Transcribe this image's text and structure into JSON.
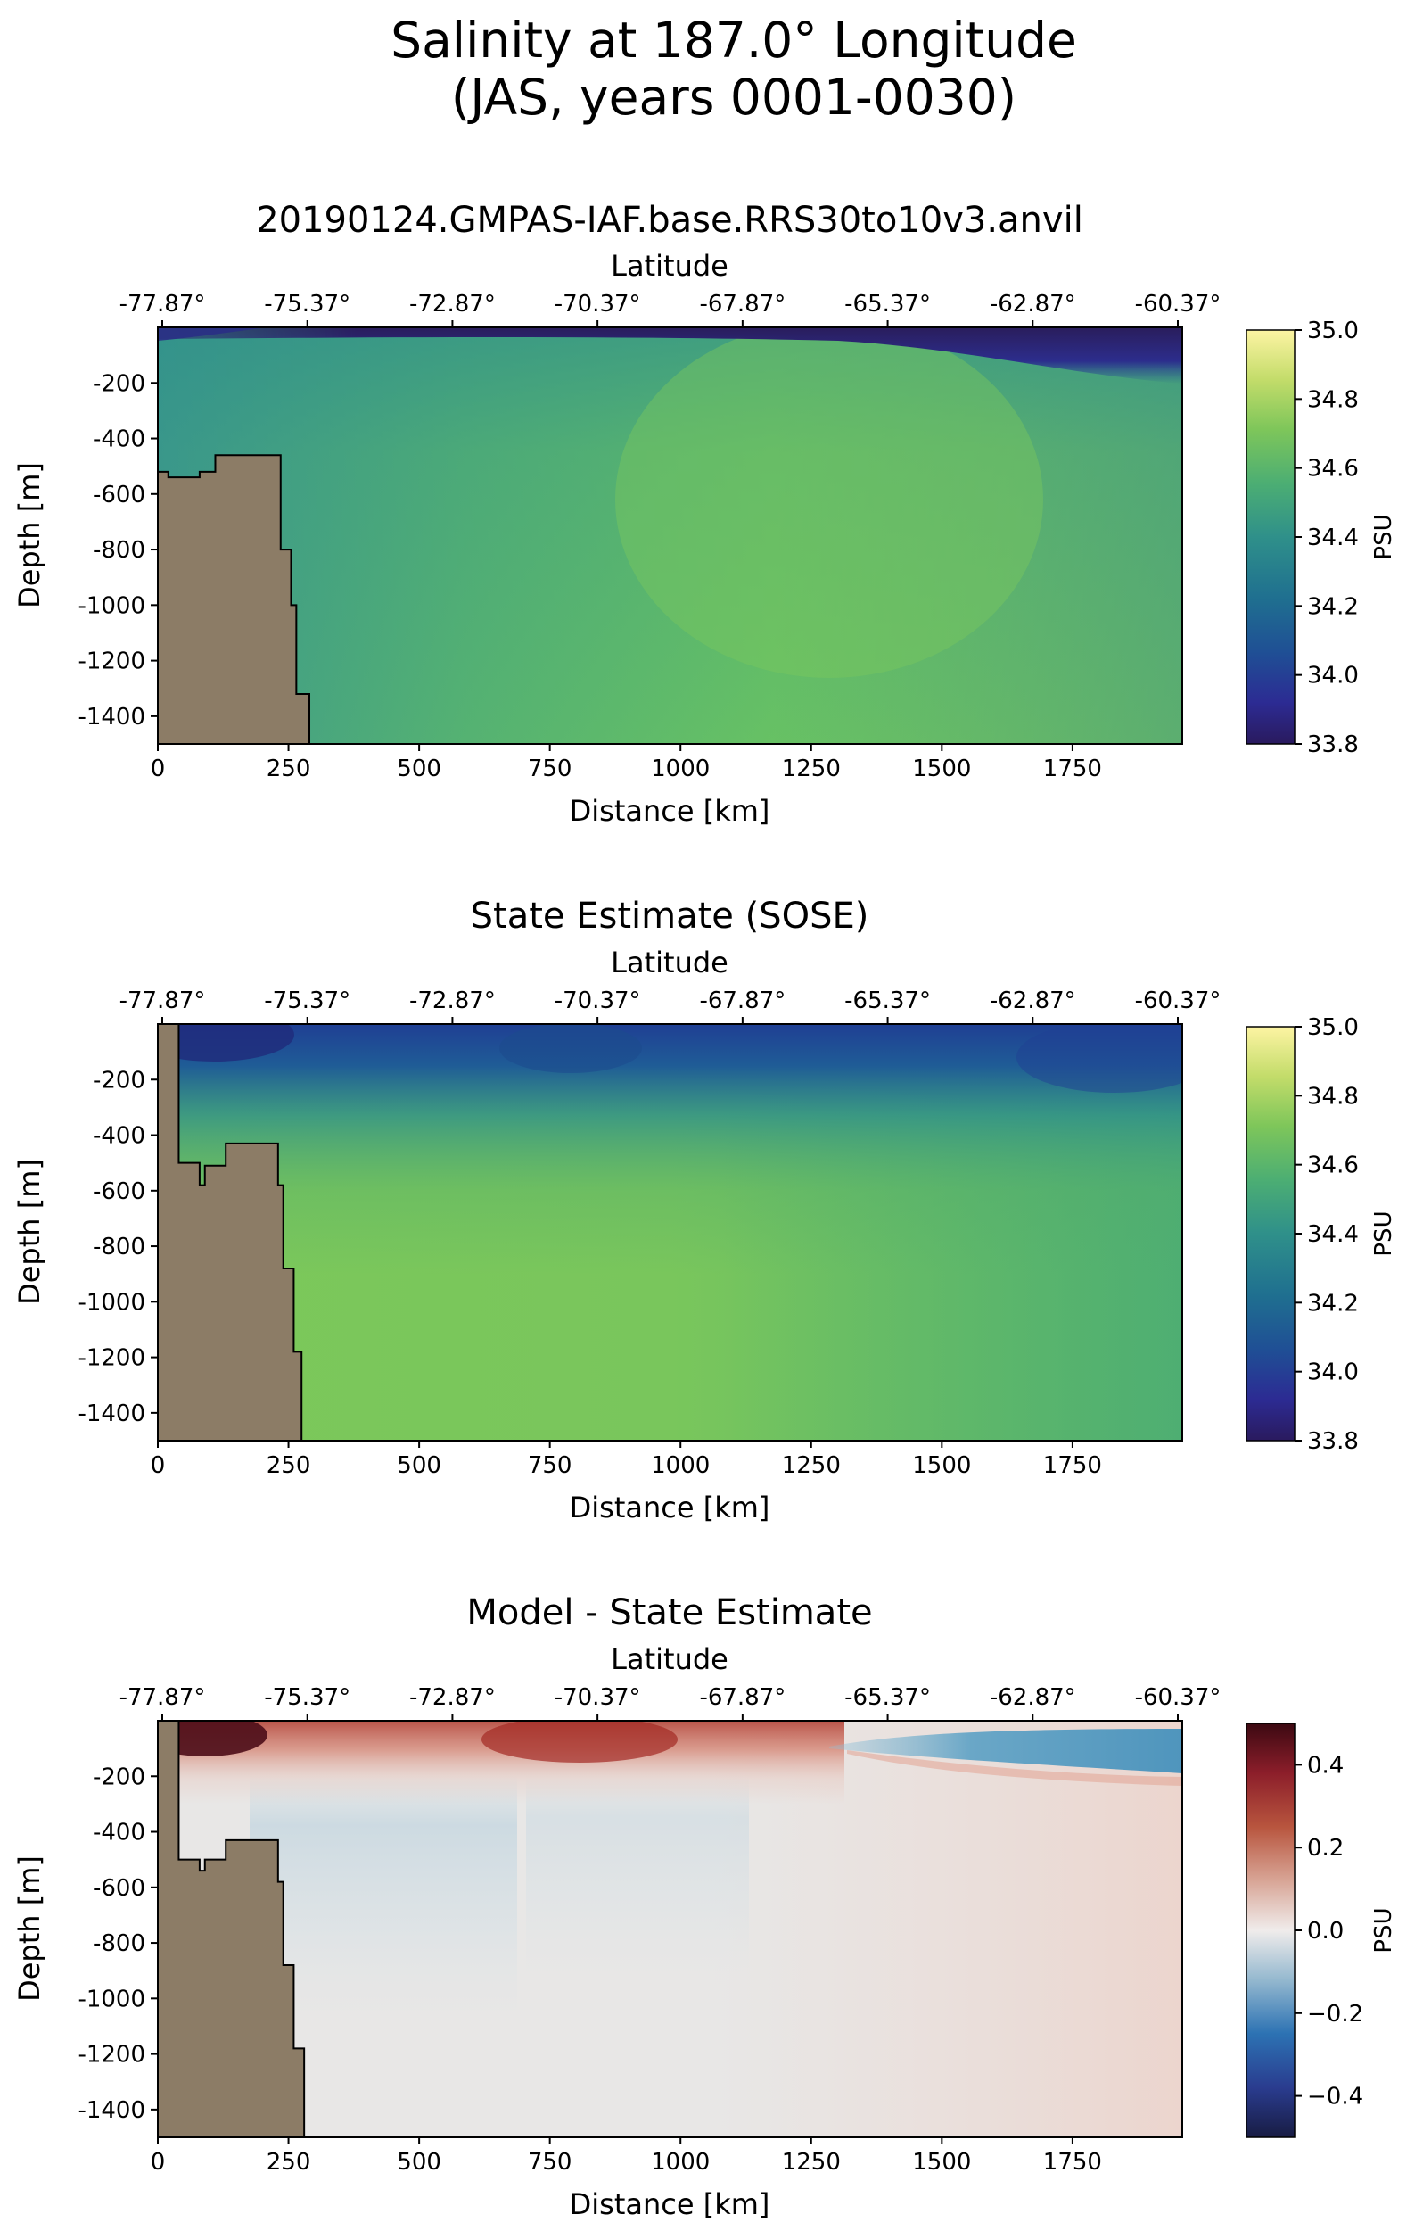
{
  "figure": {
    "title_line1": "Salinity at 187.0° Longitude",
    "title_line2": "(JAS, years 0001-0030)"
  },
  "chart_data": [
    {
      "type": "heatmap",
      "title": "20190124.GMPAS-IAF.base.RRS30to10v3.anvil",
      "xlabel": "Distance [km]",
      "ylabel": "Depth [m]",
      "top_xlabel": "Latitude",
      "xlim": [
        0,
        1960
      ],
      "ylim": [
        -1500,
        0
      ],
      "xticks": [
        "0",
        "250",
        "500",
        "750",
        "1000",
        "1250",
        "1500",
        "1750"
      ],
      "yticks": [
        "-200",
        "-400",
        "-600",
        "-800",
        "-1000",
        "-1200",
        "-1400"
      ],
      "top_xticks": [
        "-77.87°",
        "-75.37°",
        "-72.87°",
        "-70.37°",
        "-67.87°",
        "-65.37°",
        "-62.87°",
        "-60.37°"
      ],
      "colorbar": {
        "label": "PSU",
        "range": [
          33.8,
          35.0
        ],
        "ticks": [
          "35.0",
          "34.8",
          "34.6",
          "34.4",
          "34.2",
          "34.0",
          "33.8"
        ],
        "colormap": "haline"
      },
      "land": {
        "color": "#8c7c66",
        "outline": [
          [
            0,
            -520
          ],
          [
            20,
            -540
          ],
          [
            80,
            -520
          ],
          [
            110,
            -460
          ],
          [
            220,
            -460
          ],
          [
            235,
            -800
          ],
          [
            255,
            -1000
          ],
          [
            265,
            -1320
          ],
          [
            290,
            -1500
          ]
        ]
      },
      "field_description": {
        "surface_fresh_zone": "Distance 1300-1960 km, depth 0 to -200 m, ~33.8-34.0 PSU",
        "interior": "~34.5-34.7 PSU"
      }
    },
    {
      "type": "heatmap",
      "title": "State Estimate (SOSE)",
      "xlabel": "Distance [km]",
      "ylabel": "Depth [m]",
      "top_xlabel": "Latitude",
      "xlim": [
        0,
        1960
      ],
      "ylim": [
        -1500,
        0
      ],
      "xticks": [
        "0",
        "250",
        "500",
        "750",
        "1000",
        "1250",
        "1500",
        "1750"
      ],
      "yticks": [
        "-200",
        "-400",
        "-600",
        "-800",
        "-1000",
        "-1200",
        "-1400"
      ],
      "top_xticks": [
        "-77.87°",
        "-75.37°",
        "-72.87°",
        "-70.37°",
        "-67.87°",
        "-65.37°",
        "-62.87°",
        "-60.37°"
      ],
      "colorbar": {
        "label": "PSU",
        "range": [
          33.8,
          35.0
        ],
        "ticks": [
          "35.0",
          "34.8",
          "34.6",
          "34.4",
          "34.2",
          "34.0",
          "33.8"
        ],
        "colormap": "haline"
      },
      "land": {
        "color": "#8c7c66",
        "outline": [
          [
            0,
            0
          ],
          [
            35,
            0
          ],
          [
            40,
            -500
          ],
          [
            70,
            -500
          ],
          [
            80,
            -580
          ],
          [
            90,
            -510
          ],
          [
            130,
            -430
          ],
          [
            200,
            -430
          ],
          [
            230,
            -580
          ],
          [
            240,
            -880
          ],
          [
            260,
            -1180
          ],
          [
            275,
            -1500
          ]
        ]
      },
      "field_description": {
        "surface_fresh_layer": "Depth 0 to -150 m, ~33.9-34.1 PSU",
        "interior": "~34.5-34.7 PSU"
      }
    },
    {
      "type": "heatmap",
      "title": "Model - State Estimate",
      "xlabel": "Distance [km]",
      "ylabel": "Depth [m]",
      "top_xlabel": "Latitude",
      "xlim": [
        0,
        1960
      ],
      "ylim": [
        -1500,
        0
      ],
      "xticks": [
        "0",
        "250",
        "500",
        "750",
        "1000",
        "1250",
        "1500",
        "1750"
      ],
      "yticks": [
        "-200",
        "-400",
        "-600",
        "-800",
        "-1000",
        "-1200",
        "-1400"
      ],
      "top_xticks": [
        "-77.87°",
        "-75.37°",
        "-72.87°",
        "-70.37°",
        "-67.87°",
        "-65.37°",
        "-62.87°",
        "-60.37°"
      ],
      "colorbar": {
        "label": "PSU",
        "range": [
          -0.5,
          0.5
        ],
        "ticks": [
          "0.4",
          "0.2",
          "0.0",
          "−0.2",
          "−0.4"
        ],
        "colormap": "balance"
      },
      "land": {
        "color": "#8c7c66",
        "outline": [
          [
            0,
            0
          ],
          [
            35,
            0
          ],
          [
            40,
            -500
          ],
          [
            70,
            -500
          ],
          [
            80,
            -540
          ],
          [
            90,
            -500
          ],
          [
            130,
            -430
          ],
          [
            200,
            -430
          ],
          [
            230,
            -580
          ],
          [
            240,
            -880
          ],
          [
            260,
            -1180
          ],
          [
            280,
            -1500
          ]
        ]
      },
      "field_description": {
        "surface_positive": "Distance 0-1250 km, depth 0 to -150 m, up to +0.5 PSU",
        "surface_negative": "Distance 1300-1960 km, depth 0 to -150 m, ~ -0.2 PSU",
        "interior": "~ -0.05 to +0.05 PSU"
      }
    }
  ]
}
